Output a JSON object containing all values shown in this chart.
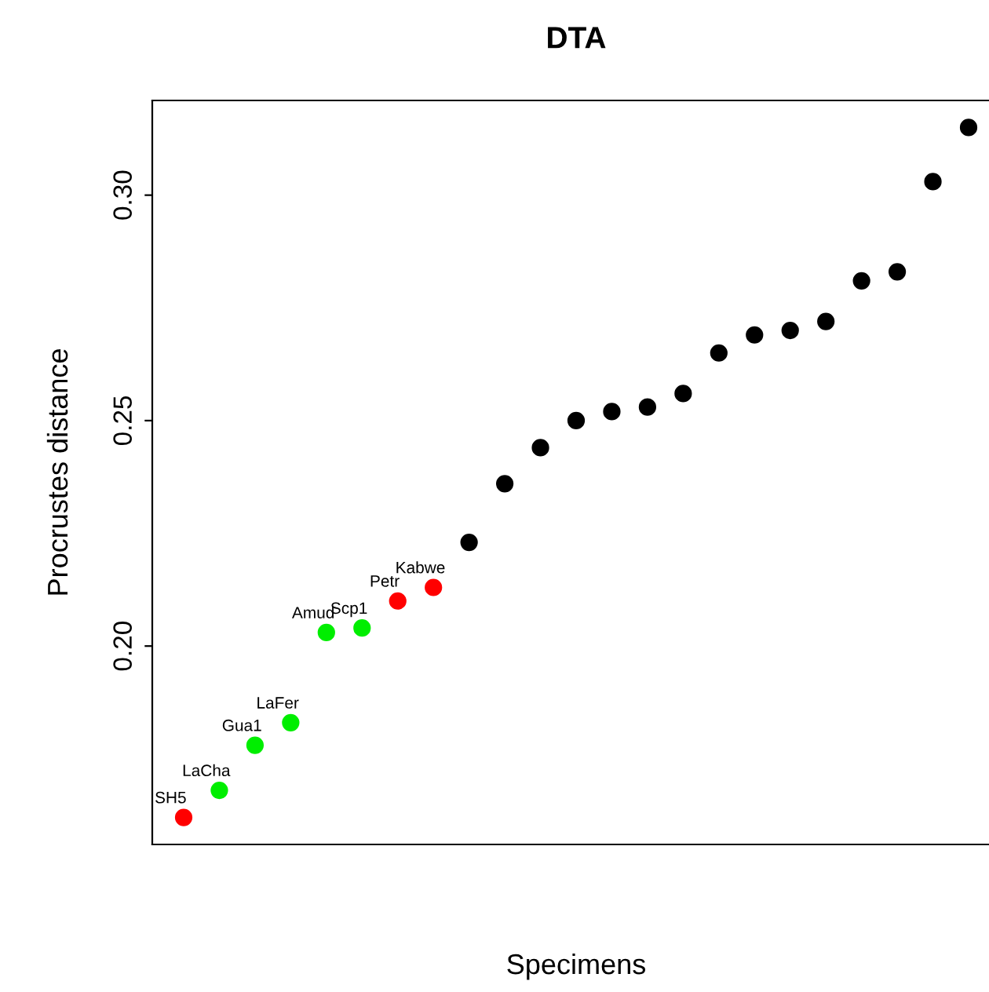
{
  "chart_data": {
    "type": "scatter",
    "title": "DTA",
    "xlabel": "Specimens",
    "ylabel": "Procrustes distance",
    "categories": [
      null,
      null,
      null,
      null,
      null,
      null,
      null,
      null,
      null,
      null,
      null,
      null,
      null,
      null,
      null,
      null,
      null,
      null,
      null,
      null,
      null,
      null,
      null
    ],
    "values": [
      0.162,
      0.168,
      0.178,
      0.183,
      0.203,
      0.204,
      0.21,
      0.213,
      0.223,
      0.236,
      0.244,
      0.25,
      0.252,
      0.253,
      0.256,
      0.265,
      0.269,
      0.27,
      0.272,
      0.281,
      0.283,
      0.303,
      0.315
    ],
    "colors": [
      "#ff0000",
      "#00ee00",
      "#00ee00",
      "#00ee00",
      "#00ee00",
      "#00ee00",
      "#ff0000",
      "#ff0000",
      "#000000",
      "#000000",
      "#000000",
      "#000000",
      "#000000",
      "#000000",
      "#000000",
      "#000000",
      "#000000",
      "#000000",
      "#000000",
      "#000000",
      "#000000",
      "#000000",
      "#000000"
    ],
    "value_labels": [
      "SH5",
      "LaCha",
      "Gua1",
      "LaFer",
      "Amud",
      "Scp1",
      "Petr",
      "Kabwe",
      null,
      null,
      null,
      null,
      null,
      null,
      null,
      null,
      null,
      null,
      null,
      null,
      null,
      null,
      null
    ],
    "ylim": [
      0.156,
      0.321
    ],
    "yticks": [
      {
        "value": 0.2,
        "label": "0.20"
      },
      {
        "value": 0.25,
        "label": "0.25"
      },
      {
        "value": 0.3,
        "label": "0.30"
      }
    ],
    "marker": "circle",
    "grid": false,
    "legend": false
  }
}
